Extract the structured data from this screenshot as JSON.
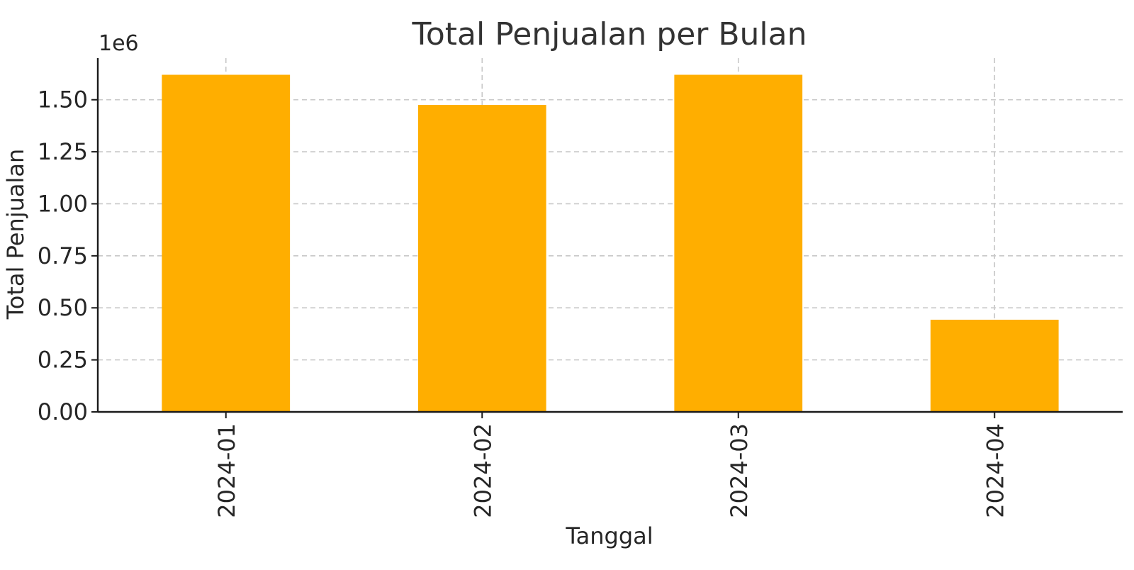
{
  "chart_data": {
    "type": "bar",
    "title": "Total Penjualan per Bulan",
    "xlabel": "Tanggal",
    "ylabel": "Total Penjualan",
    "y_offset_label": "1e6",
    "categories": [
      "2024-01",
      "2024-02",
      "2024-03",
      "2024-04"
    ],
    "values": [
      1620000,
      1475000,
      1620000,
      443000
    ],
    "ylim": [
      0,
      1700000
    ],
    "yticks": [
      0,
      250000,
      500000,
      750000,
      1000000,
      1250000,
      1500000
    ],
    "ytick_labels": [
      "0.00",
      "0.25",
      "0.50",
      "0.75",
      "1.00",
      "1.25",
      "1.50"
    ],
    "grid": true,
    "bar_color": "#FFAE00"
  }
}
